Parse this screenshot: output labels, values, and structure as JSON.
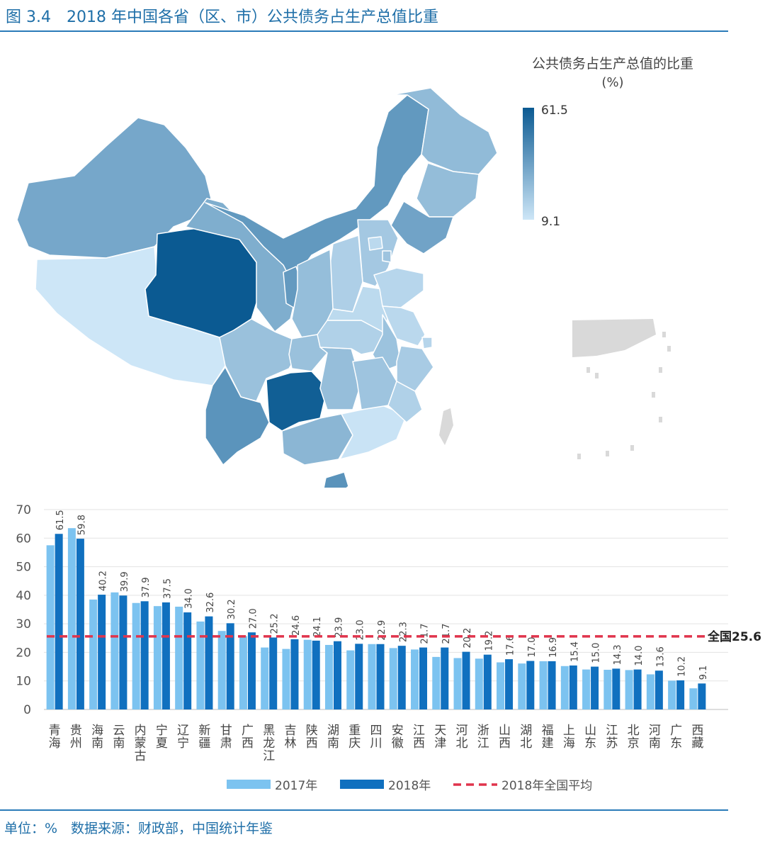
{
  "figure": {
    "title": "图 3.4　2018 年中国各省（区、市）公共债务占生产总值比重",
    "source_note": "单位：%　数据来源：财政部，中国统计年鉴"
  },
  "map": {
    "legend_title_line1": "公共债务占生产总值的比重",
    "legend_title_line2": "(%)",
    "legend_max": 61.5,
    "legend_min": 9.1,
    "color_low": "#cde6f7",
    "color_high": "#0b5a92",
    "region_values": [
      {
        "name": "新疆",
        "value": 32.6
      },
      {
        "name": "西藏",
        "value": 9.1
      },
      {
        "name": "青海",
        "value": 61.5
      },
      {
        "name": "甘肃",
        "value": 30.2
      },
      {
        "name": "内蒙古",
        "value": 37.9
      },
      {
        "name": "黑龙江",
        "value": 25.2
      },
      {
        "name": "吉林",
        "value": 24.6
      },
      {
        "name": "辽宁",
        "value": 34.0
      },
      {
        "name": "河北",
        "value": 20.2
      },
      {
        "name": "北京",
        "value": 14.0
      },
      {
        "name": "天津",
        "value": 21.7
      },
      {
        "name": "山西",
        "value": 17.6
      },
      {
        "name": "陕西",
        "value": 24.1
      },
      {
        "name": "宁夏",
        "value": 37.5
      },
      {
        "name": "四川",
        "value": 22.9
      },
      {
        "name": "重庆",
        "value": 23.0
      },
      {
        "name": "云南",
        "value": 39.9
      },
      {
        "name": "贵州",
        "value": 59.8
      },
      {
        "name": "广西",
        "value": 27.0
      },
      {
        "name": "广东",
        "value": 10.2
      },
      {
        "name": "海南",
        "value": 40.2
      },
      {
        "name": "湖南",
        "value": 23.9
      },
      {
        "name": "湖北",
        "value": 17.0
      },
      {
        "name": "河南",
        "value": 13.6
      },
      {
        "name": "山东",
        "value": 15.0
      },
      {
        "name": "江苏",
        "value": 14.3
      },
      {
        "name": "安徽",
        "value": 22.3
      },
      {
        "name": "江西",
        "value": 21.7
      },
      {
        "name": "浙江",
        "value": 19.2
      },
      {
        "name": "福建",
        "value": 16.9
      },
      {
        "name": "上海",
        "value": 15.4
      }
    ],
    "inactive_color": "#d9d9d9"
  },
  "chart_data": {
    "type": "bar",
    "categories": [
      "青海",
      "贵州",
      "海南",
      "云南",
      "内蒙古",
      "宁夏",
      "辽宁",
      "新疆",
      "甘肃",
      "广西",
      "黑龙江",
      "吉林",
      "陕西",
      "湖南",
      "重庆",
      "四川",
      "安徽",
      "江西",
      "天津",
      "河北",
      "浙江",
      "山西",
      "湖北",
      "福建",
      "上海",
      "山东",
      "江苏",
      "北京",
      "河南",
      "广东",
      "西藏"
    ],
    "series": [
      {
        "name": "2017年",
        "color": "#7cc3f0",
        "values": [
          57.5,
          63.5,
          38.5,
          41.0,
          37.3,
          36.2,
          36.0,
          30.8,
          27.5,
          25.7,
          21.7,
          21.2,
          24.4,
          22.6,
          20.7,
          22.9,
          21.5,
          21.0,
          18.4,
          18.0,
          17.8,
          16.5,
          16.1,
          16.9,
          15.2,
          14.0,
          13.9,
          13.8,
          12.3,
          10.1,
          7.4
        ]
      },
      {
        "name": "2018年",
        "color": "#1070bf",
        "labels": true,
        "values": [
          61.5,
          59.8,
          40.2,
          39.9,
          37.9,
          37.5,
          34.0,
          32.6,
          30.2,
          27.0,
          25.2,
          24.6,
          24.1,
          23.9,
          23.0,
          22.9,
          22.3,
          21.7,
          21.7,
          20.2,
          19.2,
          17.6,
          17.0,
          16.9,
          15.4,
          15.0,
          14.3,
          14.0,
          13.6,
          10.2,
          9.1
        ]
      }
    ],
    "reference_line": {
      "name": "2018年全国平均",
      "value": 25.6,
      "label": "全国25.6",
      "color": "#e0344c"
    },
    "ylim": [
      0,
      70
    ],
    "yticks": [
      0,
      10,
      20,
      30,
      40,
      50,
      60,
      70
    ],
    "grid": true,
    "legend_placement": "bottom"
  }
}
